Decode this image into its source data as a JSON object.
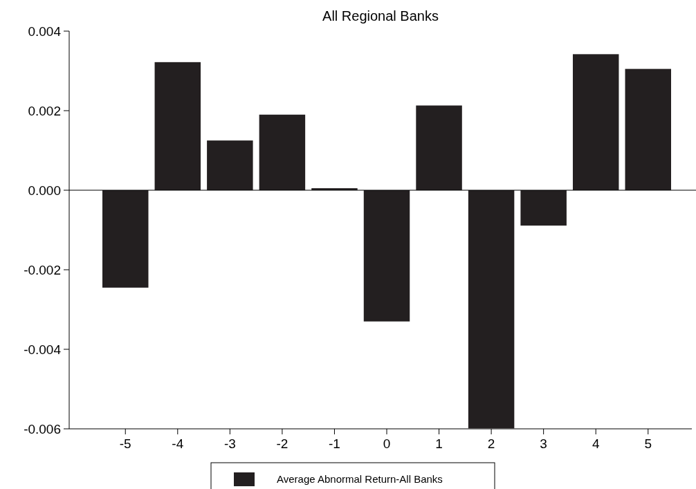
{
  "chart_data": {
    "type": "bar",
    "title": "All Regional Banks",
    "categories": [
      "-5",
      "-4",
      "-3",
      "-2",
      "-1",
      "0",
      "1",
      "2",
      "3",
      "4",
      "5"
    ],
    "series": [
      {
        "name": "Average Abnormal Return-All Banks",
        "color": "#231f20",
        "values": [
          -0.00245,
          0.00322,
          0.00125,
          0.0019,
          5e-05,
          -0.0033,
          0.00213,
          -0.00599,
          -0.00089,
          0.00342,
          0.00305
        ]
      }
    ],
    "ref_lines": [
      {
        "axis": "y",
        "value": 0,
        "color": "#000000"
      }
    ],
    "ylim": [
      -0.006,
      0.004
    ],
    "yticks": [
      {
        "value": -0.006,
        "label": "-0.006"
      },
      {
        "value": -0.004,
        "label": "-0.004"
      },
      {
        "value": -0.002,
        "label": "-0.002"
      },
      {
        "value": 0,
        "label": "0.000"
      },
      {
        "value": 0.002,
        "label": "0.002"
      },
      {
        "value": 0.004,
        "label": "0.004"
      }
    ],
    "grid": false,
    "legend": "bottom"
  }
}
